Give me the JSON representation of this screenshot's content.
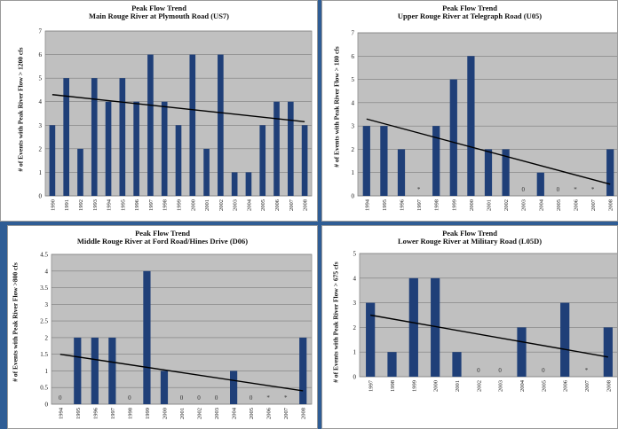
{
  "chart_data": [
    {
      "type": "bar",
      "title": "Peak Flow Trend",
      "subtitle": "Main Rouge River at Plymouth Road (US7)",
      "ylabel": "# of Events with Peak River Flow > 1200 cfs",
      "xlabel": "",
      "categories": [
        "1990",
        "1991",
        "1992",
        "1993",
        "1994",
        "1995",
        "1996",
        "1997",
        "1998",
        "1999",
        "2000",
        "2001",
        "2002",
        "2003",
        "2004",
        "2005",
        "2006",
        "2007",
        "2008"
      ],
      "values": [
        3,
        5,
        2,
        5,
        4,
        5,
        4,
        6,
        4,
        3,
        6,
        2,
        6,
        1,
        1,
        3,
        4,
        4,
        3
      ],
      "value_labels": [
        "",
        "",
        "",
        "",
        "",
        "",
        "",
        "",
        "",
        "",
        "",
        "",
        "",
        "",
        "",
        "",
        "",
        "",
        ""
      ],
      "yticks": [
        "0",
        "1",
        "2",
        "3",
        "4",
        "5",
        "6",
        "7"
      ],
      "ylim": [
        0,
        7
      ],
      "trendline": [
        4.3,
        3.15
      ],
      "bar_color": "#1f3f78",
      "grid": true
    },
    {
      "type": "bar",
      "title": "Peak Flow Trend",
      "subtitle": "Upper Rouge River at Telegraph Road (U05)",
      "ylabel": "# of Events with Peak River Flow > 180 cfs",
      "xlabel": "",
      "categories": [
        "1994",
        "1995",
        "1996",
        "1997",
        "1998",
        "1999",
        "2000",
        "2001",
        "2002",
        "2003",
        "2004",
        "2005",
        "2006",
        "2007",
        "2008"
      ],
      "values": [
        3,
        3,
        2,
        0,
        3,
        5,
        6,
        2,
        2,
        0,
        1,
        0,
        0,
        0,
        2
      ],
      "value_labels": [
        "",
        "",
        "",
        "*",
        "",
        "",
        "",
        "",
        "",
        "0",
        "",
        "0",
        "*",
        "*",
        ""
      ],
      "yticks": [
        "0",
        "1",
        "2",
        "3",
        "4",
        "5",
        "6",
        "7"
      ],
      "ylim": [
        0,
        7
      ],
      "trendline": [
        3.3,
        0.5
      ],
      "bar_color": "#1f3f78",
      "grid": true
    },
    {
      "type": "bar",
      "title": "Peak Flow Trend",
      "subtitle": "Middle Rouge River at Ford Road/Hines Drive (D06)",
      "ylabel": "# of Events with Peak River Flow >800 cfs",
      "xlabel": "",
      "categories": [
        "1994",
        "1995",
        "1996",
        "1997",
        "1998",
        "1999",
        "2000",
        "2001",
        "2002",
        "2003",
        "2004",
        "2005",
        "2006",
        "2007",
        "2008"
      ],
      "values": [
        0,
        2,
        2,
        2,
        0,
        4,
        1,
        0,
        0,
        0,
        1,
        0,
        0,
        0,
        2
      ],
      "value_labels": [
        "0",
        "",
        "",
        "",
        "0",
        "",
        "",
        "0",
        "0",
        "0",
        "",
        "0",
        "*",
        "*",
        ""
      ],
      "yticks": [
        "0",
        "0.5",
        "1",
        "1.5",
        "2",
        "2.5",
        "3",
        "3.5",
        "4",
        "4.5"
      ],
      "ylim": [
        0,
        4.5
      ],
      "trendline": [
        1.5,
        0.4
      ],
      "bar_color": "#1f3f78",
      "grid": true
    },
    {
      "type": "bar",
      "title": "Peak Flow Trend",
      "subtitle": "Lower Rouge River at Military Road (L05D)",
      "ylabel": "# of Events with Peak River Flow > 675 cfs",
      "xlabel": "",
      "categories": [
        "1997",
        "1998",
        "1999",
        "2000",
        "2001",
        "2002",
        "2003",
        "2004",
        "2005",
        "2006",
        "2007",
        "2008"
      ],
      "values": [
        3,
        1,
        4,
        4,
        1,
        0,
        0,
        2,
        0,
        3,
        0,
        2
      ],
      "value_labels": [
        "",
        "",
        "",
        "",
        "",
        "0",
        "0",
        "",
        "0",
        "",
        "*",
        ""
      ],
      "yticks": [
        "0",
        "1",
        "2",
        "3",
        "4",
        "5"
      ],
      "ylim": [
        0,
        5
      ],
      "trendline": [
        2.5,
        0.8
      ],
      "bar_color": "#1f3f78",
      "grid": true
    }
  ]
}
